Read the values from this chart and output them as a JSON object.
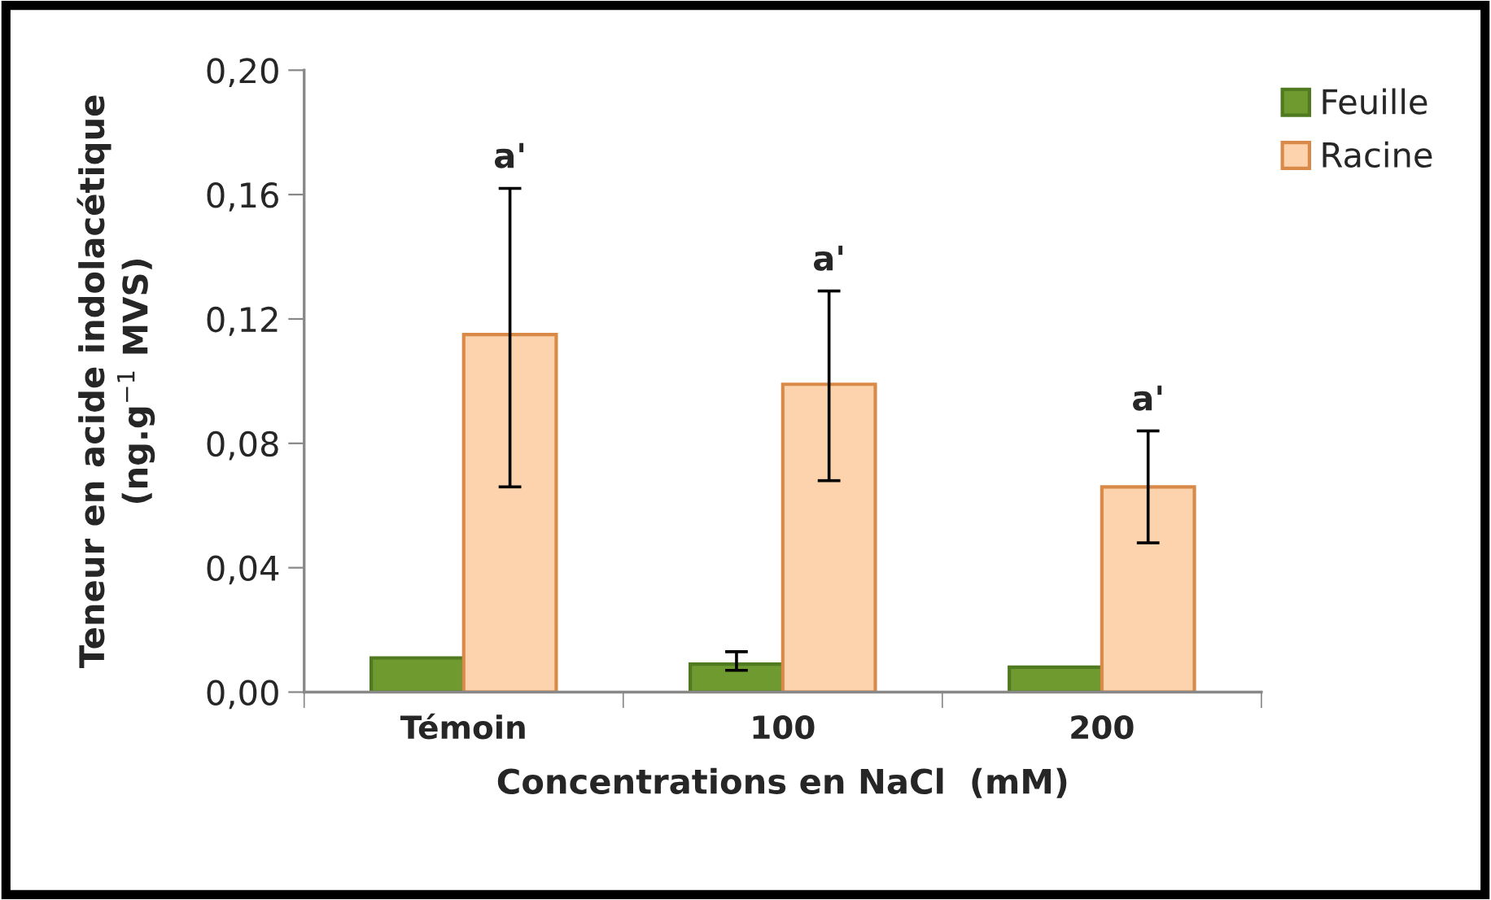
{
  "chart_data": {
    "type": "bar",
    "xlabel": "Concentrations en NaCl  (mM)",
    "ylabel": "Teneur en acide indolacétique\n(ng.g$^{−1}$ MVS)",
    "categories": [
      "Témoin",
      "100",
      "200"
    ],
    "series": [
      {
        "name": "Feuille",
        "color": "#6f9a2f",
        "values": [
          0.011,
          0.009,
          0.008
        ],
        "errors": [
          null,
          [
            0.007,
            0.013
          ],
          null
        ]
      },
      {
        "name": "Racine",
        "color": "#fcd3ac",
        "values": [
          0.115,
          0.099,
          0.066
        ],
        "errors": [
          [
            0.066,
            0.162
          ],
          [
            0.068,
            0.129
          ],
          [
            0.048,
            0.084
          ]
        ]
      }
    ],
    "ylim": [
      0,
      0.2
    ],
    "yticks": [
      {
        "value": 0,
        "label": "0,00"
      },
      {
        "value": 0.04,
        "label": "0,04"
      },
      {
        "value": 0.08,
        "label": "0,08"
      },
      {
        "value": 0.12,
        "label": "0,12"
      },
      {
        "value": 0.16,
        "label": "0,16"
      },
      {
        "value": 0.2,
        "label": "0,20"
      }
    ],
    "annotations": [
      "a'",
      "a'",
      "a'"
    ],
    "legend": "top right",
    "grid": false
  }
}
